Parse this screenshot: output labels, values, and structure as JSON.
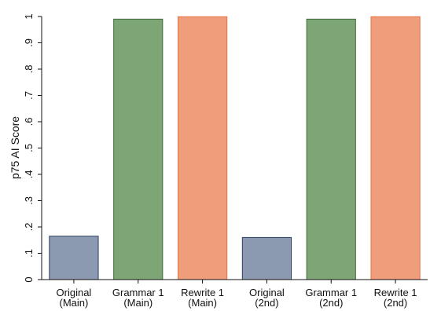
{
  "chart_data": {
    "type": "bar",
    "ylabel": "p75 AI Score",
    "xlabel": "",
    "ylim": [
      0,
      1
    ],
    "yticks": [
      "0",
      ".1",
      ".2",
      ".3",
      ".4",
      ".5",
      ".6",
      ".7",
      ".8",
      ".9",
      "1"
    ],
    "grid": false,
    "categories": [
      [
        "Original",
        "(Main)"
      ],
      [
        "Grammar 1",
        "(Main)"
      ],
      [
        "Rewrite 1",
        "(Main)"
      ],
      [
        "Original",
        "(2nd)"
      ],
      [
        "Grammar 1",
        "(2nd)"
      ],
      [
        "Rewrite 1",
        "(2nd)"
      ]
    ],
    "values": [
      0.165,
      0.99,
      0.999,
      0.16,
      0.99,
      0.999
    ],
    "colors": [
      "#8b99b1",
      "#7ea576",
      "#f09d7b",
      "#8b99b1",
      "#7ea576",
      "#f09d7b"
    ],
    "edge_colors": [
      "#2b3f5c",
      "#3d6b35",
      "#e8703f",
      "#2b3f5c",
      "#3d6b35",
      "#e8703f"
    ]
  }
}
